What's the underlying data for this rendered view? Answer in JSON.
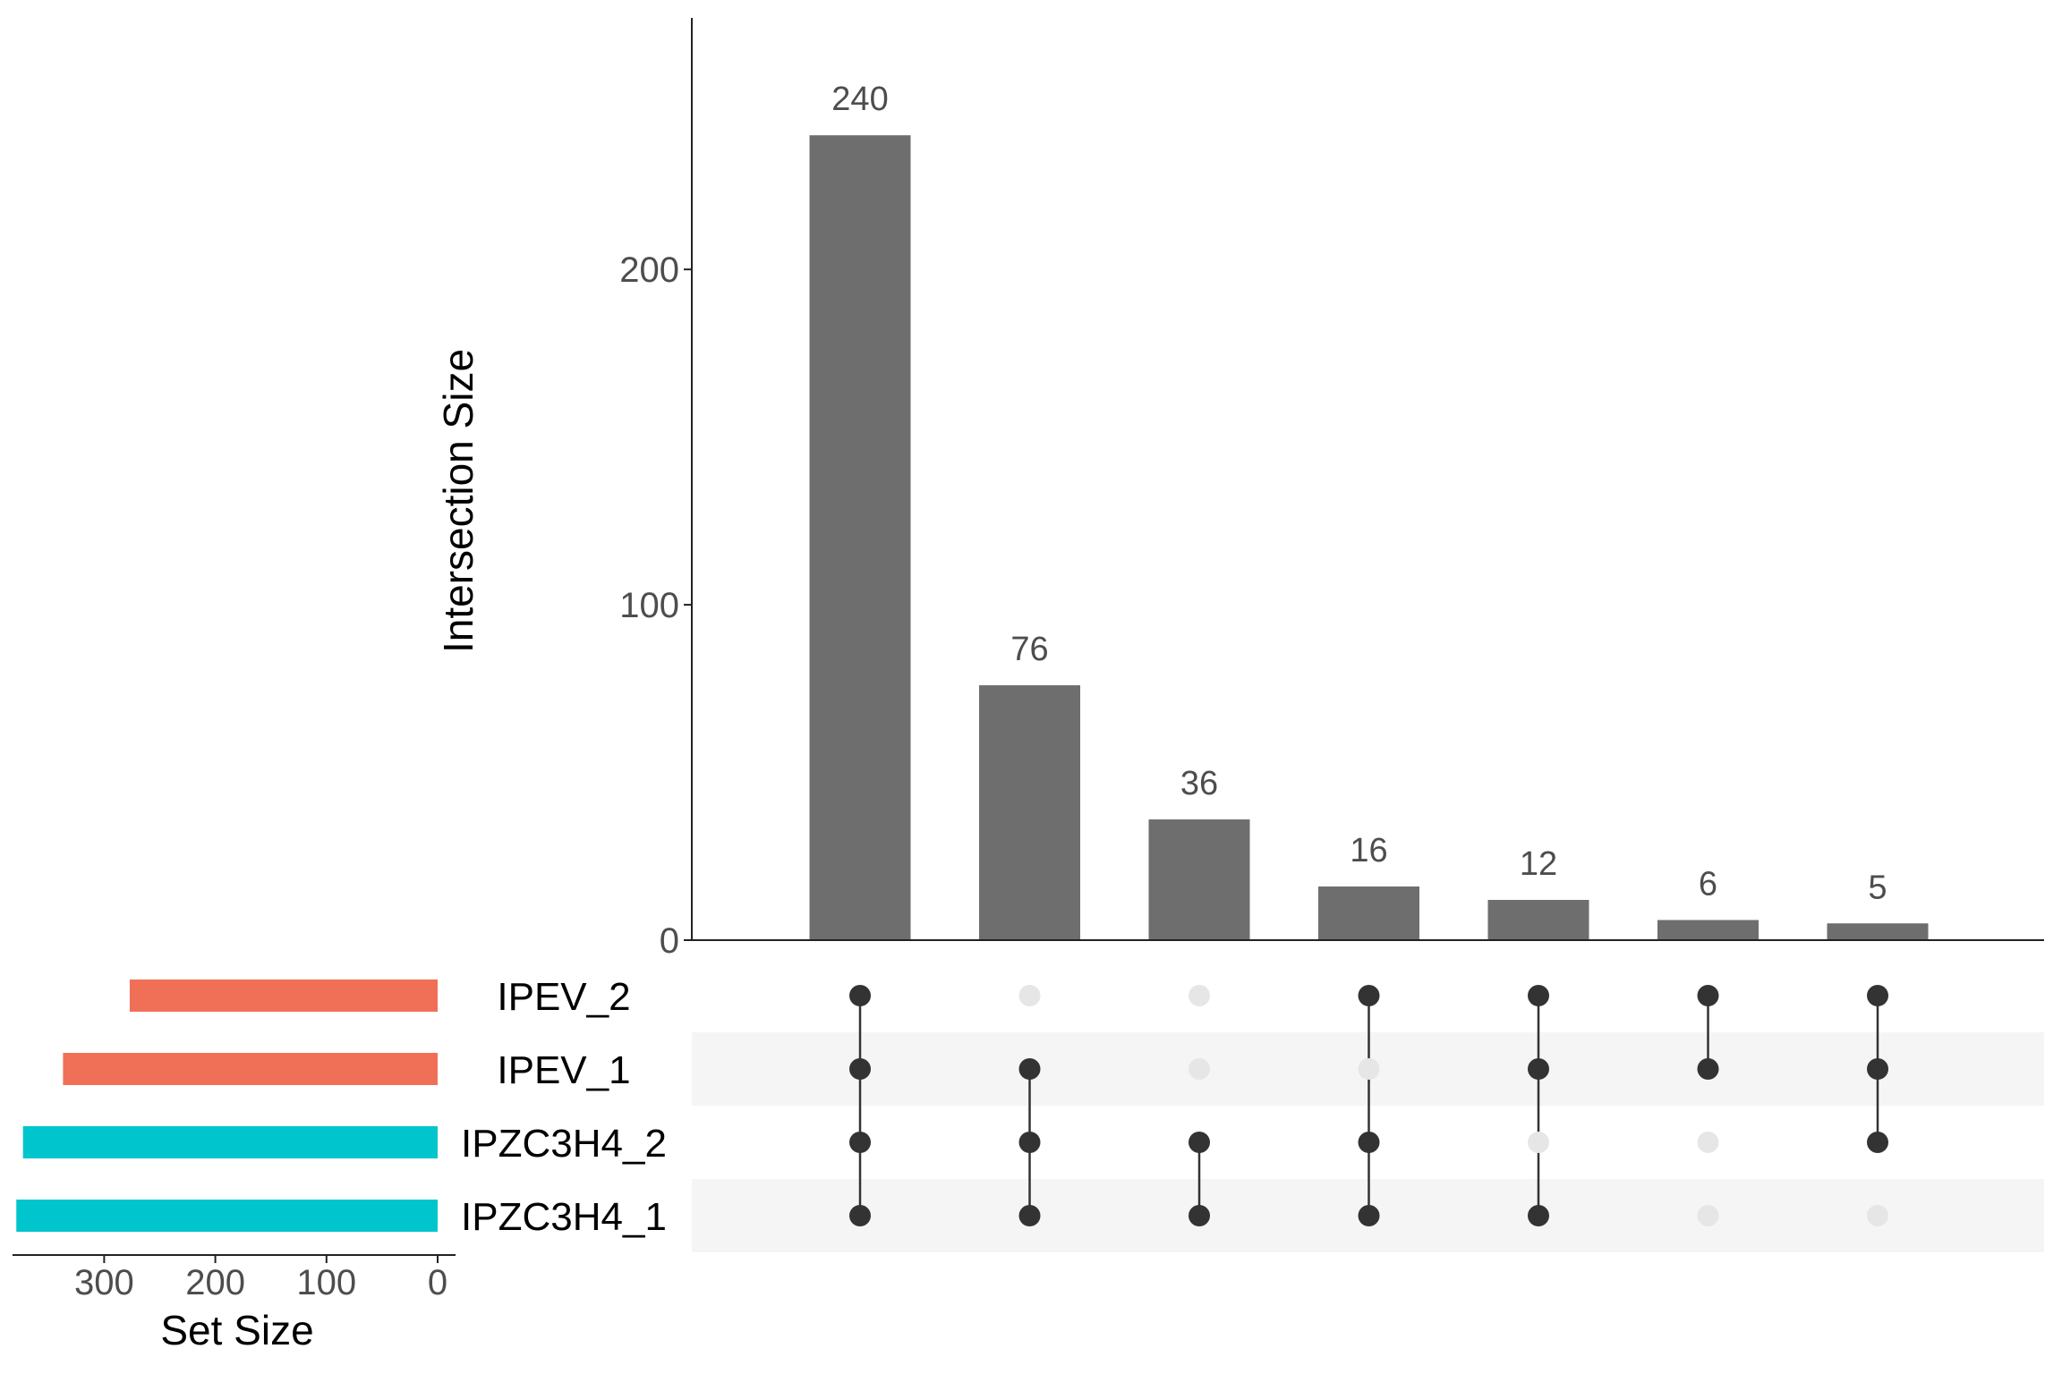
{
  "chart_data": {
    "type": "upset",
    "ylabel": "Intersection Size",
    "xlabel_sets": "Set Size",
    "y_ticks": [
      0,
      100,
      200
    ],
    "ylim": [
      0,
      275
    ],
    "set_size_ticks": [
      300,
      200,
      100,
      0
    ],
    "set_size_lim": [
      0,
      380
    ],
    "sets": [
      {
        "name": "IPEV_2",
        "size": 277,
        "color": "#F07057"
      },
      {
        "name": "IPEV_1",
        "size": 337,
        "color": "#F07057"
      },
      {
        "name": "IPZC3H4_2",
        "size": 373,
        "color": "#00C5CC"
      },
      {
        "name": "IPZC3H4_1",
        "size": 379,
        "color": "#00C5CC"
      }
    ],
    "intersections": [
      {
        "value": 240,
        "members": [
          "IPEV_2",
          "IPEV_1",
          "IPZC3H4_2",
          "IPZC3H4_1"
        ]
      },
      {
        "value": 76,
        "members": [
          "IPEV_1",
          "IPZC3H4_2",
          "IPZC3H4_1"
        ]
      },
      {
        "value": 36,
        "members": [
          "IPZC3H4_2",
          "IPZC3H4_1"
        ]
      },
      {
        "value": 16,
        "members": [
          "IPEV_2",
          "IPZC3H4_2",
          "IPZC3H4_1"
        ]
      },
      {
        "value": 12,
        "members": [
          "IPEV_2",
          "IPEV_1",
          "IPZC3H4_1"
        ]
      },
      {
        "value": 6,
        "members": [
          "IPEV_2",
          "IPEV_1"
        ]
      },
      {
        "value": 5,
        "members": [
          "IPEV_2",
          "IPEV_1",
          "IPZC3H4_2"
        ]
      }
    ],
    "colors": {
      "bar": "#6E6E6E",
      "dot_active": "#333333",
      "dot_inactive": "#E6E6E6",
      "stripe": "#F5F5F5",
      "axis": "#222222",
      "tick_text": "#4D4D4D",
      "label_text": "#000000"
    }
  }
}
